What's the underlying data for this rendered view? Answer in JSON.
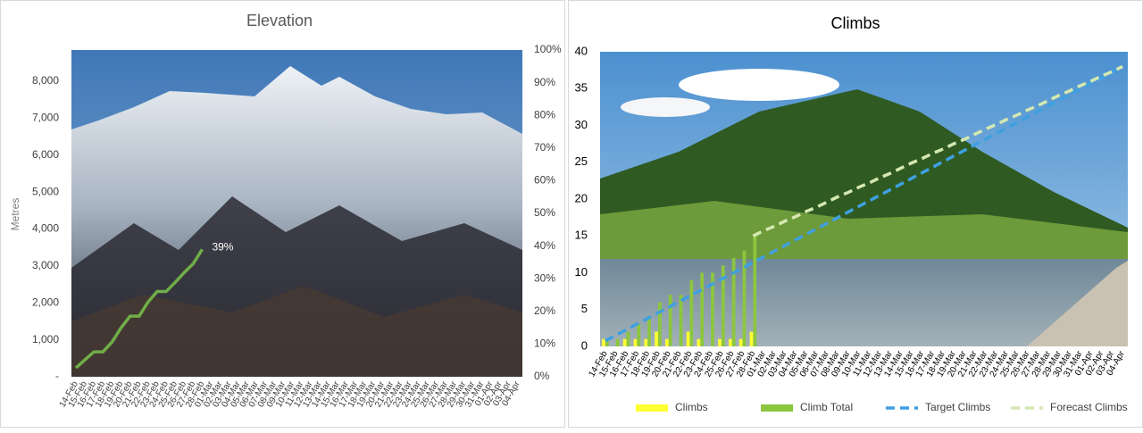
{
  "chart_data": [
    {
      "type": "line",
      "title": "Elevation",
      "y_label": "Metres",
      "color": "#70ad47",
      "annotation": "39%",
      "categories": [
        "14-Feb",
        "15-Feb",
        "16-Feb",
        "17-Feb",
        "18-Feb",
        "19-Feb",
        "20-Feb",
        "21-Feb",
        "22-Feb",
        "23-Feb",
        "24-Feb",
        "25-Feb",
        "26-Feb",
        "27-Feb",
        "28-Feb",
        "01-Mar",
        "02-Mar",
        "03-Mar",
        "04-Mar",
        "05-Mar",
        "06-Mar",
        "07-Mar",
        "08-Mar",
        "09-Mar",
        "10-Mar",
        "11-Mar",
        "12-Mar",
        "13-Mar",
        "14-Mar",
        "15-Mar",
        "16-Mar",
        "17-Mar",
        "18-Mar",
        "19-Mar",
        "20-Mar",
        "21-Mar",
        "22-Mar",
        "23-Mar",
        "24-Mar",
        "25-Mar",
        "26-Mar",
        "27-Mar",
        "28-Mar",
        "29-Mar",
        "30-Mar",
        "31-Mar",
        "01-Apr",
        "02-Apr",
        "03-Apr",
        "04-Apr"
      ],
      "values": [
        240,
        460,
        675,
        675,
        940,
        1325,
        1640,
        1640,
        2025,
        2310,
        2310,
        2555,
        2820,
        3060,
        3450,
        null,
        null,
        null,
        null,
        null,
        null,
        null,
        null,
        null,
        null,
        null,
        null,
        null,
        null,
        null,
        null,
        null,
        null,
        null,
        null,
        null,
        null,
        null,
        null,
        null,
        null,
        null,
        null,
        null,
        null,
        null,
        null,
        null,
        null,
        null
      ],
      "ylim": [
        0,
        8848
      ],
      "yticks": [
        {
          "value": 0,
          "label": "-"
        },
        {
          "value": 1000,
          "label": "1,000"
        },
        {
          "value": 2000,
          "label": "2,000"
        },
        {
          "value": 3000,
          "label": "3,000"
        },
        {
          "value": 4000,
          "label": "4,000"
        },
        {
          "value": 5000,
          "label": "5,000"
        },
        {
          "value": 6000,
          "label": "6,000"
        },
        {
          "value": 7000,
          "label": "7,000"
        },
        {
          "value": 8000,
          "label": "8,000"
        }
      ],
      "y2lim": [
        0,
        100
      ],
      "y2ticks": [
        {
          "value": 0,
          "label": "0%"
        },
        {
          "value": 10,
          "label": "10%"
        },
        {
          "value": 20,
          "label": "20%"
        },
        {
          "value": 30,
          "label": "30%"
        },
        {
          "value": 40,
          "label": "40%"
        },
        {
          "value": 50,
          "label": "50%"
        },
        {
          "value": 60,
          "label": "60%"
        },
        {
          "value": 70,
          "label": "70%"
        },
        {
          "value": 80,
          "label": "80%"
        },
        {
          "value": 90,
          "label": "90%"
        },
        {
          "value": 100,
          "label": "100%"
        }
      ]
    },
    {
      "type": "bar",
      "title": "Climbs",
      "legend": "bottom",
      "categories": [
        "14-Feb",
        "15-Feb",
        "16-Feb",
        "17-Feb",
        "18-Feb",
        "19-Feb",
        "20-Feb",
        "21-Feb",
        "22-Feb",
        "23-Feb",
        "24-Feb",
        "25-Feb",
        "26-Feb",
        "27-Feb",
        "28-Feb",
        "01-Mar",
        "02-Mar",
        "03-Mar",
        "04-Mar",
        "05-Mar",
        "06-Mar",
        "07-Mar",
        "08-Mar",
        "09-Mar",
        "10-Mar",
        "11-Mar",
        "12-Mar",
        "13-Mar",
        "14-Mar",
        "15-Mar",
        "16-Mar",
        "17-Mar",
        "18-Mar",
        "19-Mar",
        "20-Mar",
        "21-Mar",
        "22-Mar",
        "23-Mar",
        "24-Mar",
        "25-Mar",
        "26-Mar",
        "27-Mar",
        "28-Mar",
        "29-Mar",
        "30-Mar",
        "31-Mar",
        "01-Apr",
        "02-Apr",
        "03-Apr",
        "04-Apr"
      ],
      "ylim": [
        0,
        40
      ],
      "yticks": [
        0,
        5,
        10,
        15,
        20,
        25,
        30,
        35,
        40
      ],
      "series": [
        {
          "name": "Climbs",
          "type": "bar",
          "color": "#ffff33",
          "values": [
            1,
            0,
            1,
            1,
            1,
            2,
            1,
            0,
            2,
            1,
            0,
            1,
            1,
            1,
            2,
            null,
            null,
            null,
            null,
            null,
            null,
            null,
            null,
            null,
            null,
            null,
            null,
            null,
            null,
            null,
            null,
            null,
            null,
            null,
            null,
            null,
            null,
            null,
            null,
            null,
            null,
            null,
            null,
            null,
            null,
            null,
            null,
            null,
            null,
            null
          ]
        },
        {
          "name": "Climb Total",
          "type": "bar",
          "color": "#8cc63f",
          "values": [
            1,
            1,
            2,
            3,
            4,
            6,
            7,
            7,
            9,
            10,
            10,
            11,
            12,
            13,
            15,
            null,
            null,
            null,
            null,
            null,
            null,
            null,
            null,
            null,
            null,
            null,
            null,
            null,
            null,
            null,
            null,
            null,
            null,
            null,
            null,
            null,
            null,
            null,
            null,
            null,
            null,
            null,
            null,
            null,
            null,
            null,
            null,
            null,
            null,
            null
          ]
        },
        {
          "name": "Target Climbs",
          "type": "line",
          "dashed": true,
          "color": "#3fa0e0",
          "values": [
            0.76,
            1.52,
            2.28,
            3.04,
            3.8,
            4.56,
            5.32,
            6.08,
            6.84,
            7.6,
            8.36,
            9.12,
            9.88,
            10.64,
            11.4,
            12.16,
            12.92,
            13.68,
            14.44,
            15.2,
            15.96,
            16.72,
            17.48,
            18.24,
            19,
            19.76,
            20.52,
            21.28,
            22.04,
            22.8,
            23.56,
            24.32,
            25.08,
            25.84,
            26.6,
            27.36,
            28.12,
            28.88,
            29.64,
            30.4,
            31.16,
            31.92,
            32.68,
            33.44,
            34.2,
            34.96,
            35.72,
            36.48,
            37.24,
            38
          ]
        },
        {
          "name": "Forecast Climbs",
          "type": "line",
          "dashed": true,
          "color": "#d4e8b0",
          "values": [
            null,
            null,
            null,
            null,
            null,
            null,
            null,
            null,
            null,
            null,
            null,
            null,
            null,
            null,
            15,
            15.7,
            16.3,
            17,
            17.6,
            18.3,
            18.9,
            19.6,
            20.3,
            20.9,
            21.6,
            22.2,
            22.9,
            23.5,
            24.2,
            24.9,
            25.5,
            26.2,
            26.8,
            27.5,
            28.1,
            28.8,
            29.5,
            30.1,
            30.8,
            31.4,
            32.1,
            32.7,
            33.4,
            34.1,
            34.7,
            35.4,
            36,
            36.7,
            37.3,
            38
          ]
        }
      ]
    }
  ]
}
